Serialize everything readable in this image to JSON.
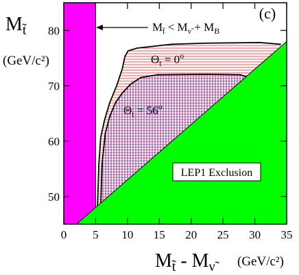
{
  "chart_data": {
    "type": "region",
    "panel_label": "(c)",
    "y_label": [
      {
        "text": "M"
      },
      {
        "text": "t̃",
        "shift": "sub"
      }
    ],
    "y_unit": "(GeV/c²)",
    "x_label": [
      {
        "text": "M"
      },
      {
        "text": "t̃",
        "shift": "sub"
      },
      {
        "text": " - M"
      },
      {
        "text": "ν̃",
        "shift": "sub"
      }
    ],
    "x_unit": "(GeV/c²)",
    "xlim": [
      0,
      35
    ],
    "xticks": [
      0,
      5,
      10,
      15,
      20,
      25,
      30,
      35
    ],
    "ylim": [
      45,
      85
    ],
    "yticks": [
      50,
      60,
      70,
      80
    ],
    "regions": [
      {
        "color": "#ff00ff",
        "x": [
          0,
          5,
          5,
          0
        ],
        "values": [
          45,
          45,
          85,
          85
        ]
      },
      {
        "name": "LEP1 Exclusion",
        "color": "#00ff00",
        "x": [
          2,
          35,
          35
        ],
        "values": [
          45,
          78,
          45
        ]
      }
    ],
    "series": [
      {
        "name": [
          {
            "text": "Θ"
          },
          {
            "text": "t",
            "shift": "sub"
          },
          {
            "text": " = 0"
          },
          {
            "text": "o",
            "shift": "sup"
          }
        ],
        "color": "#000000",
        "hatch": "horizontal",
        "hatch_color": "#ff0000",
        "x": [
          5.3,
          5.5,
          5.8,
          6.4,
          7.2,
          8.3,
          9.2,
          9.6,
          10.1,
          11.5,
          16.9,
          22.3,
          30.9,
          34.1
        ],
        "values": [
          48.2,
          55.7,
          60.7,
          63.8,
          66.9,
          70.0,
          73.1,
          75.3,
          76.3,
          76.8,
          77.5,
          77.7,
          77.8,
          77.5
        ]
      },
      {
        "name": [
          {
            "text": "Θ"
          },
          {
            "text": "t",
            "shift": "sub"
          },
          {
            "text": " = 56"
          },
          {
            "text": "o",
            "shift": "sup"
          }
        ],
        "color": "#000000",
        "hatch": "vertical",
        "hatch_color": "#0000ff",
        "x": [
          5.8,
          6.0,
          6.5,
          7.2,
          8.1,
          9.2,
          10.5,
          12.1,
          14.8,
          22.3,
          27.7,
          29.0
        ],
        "values": [
          48.2,
          55.7,
          61.3,
          64.4,
          66.9,
          68.7,
          70.3,
          71.5,
          72.0,
          72.1,
          72.0,
          71.5
        ]
      }
    ],
    "annotations": [
      {
        "text": [
          {
            "text": "M"
          },
          {
            "text": "t̃",
            "shift": "sub"
          },
          {
            "text": " < M"
          },
          {
            "text": "ν̃",
            "shift": "sub"
          },
          {
            "text": " + M"
          },
          {
            "text": "B",
            "shift": "sub"
          }
        ]
      }
    ]
  }
}
